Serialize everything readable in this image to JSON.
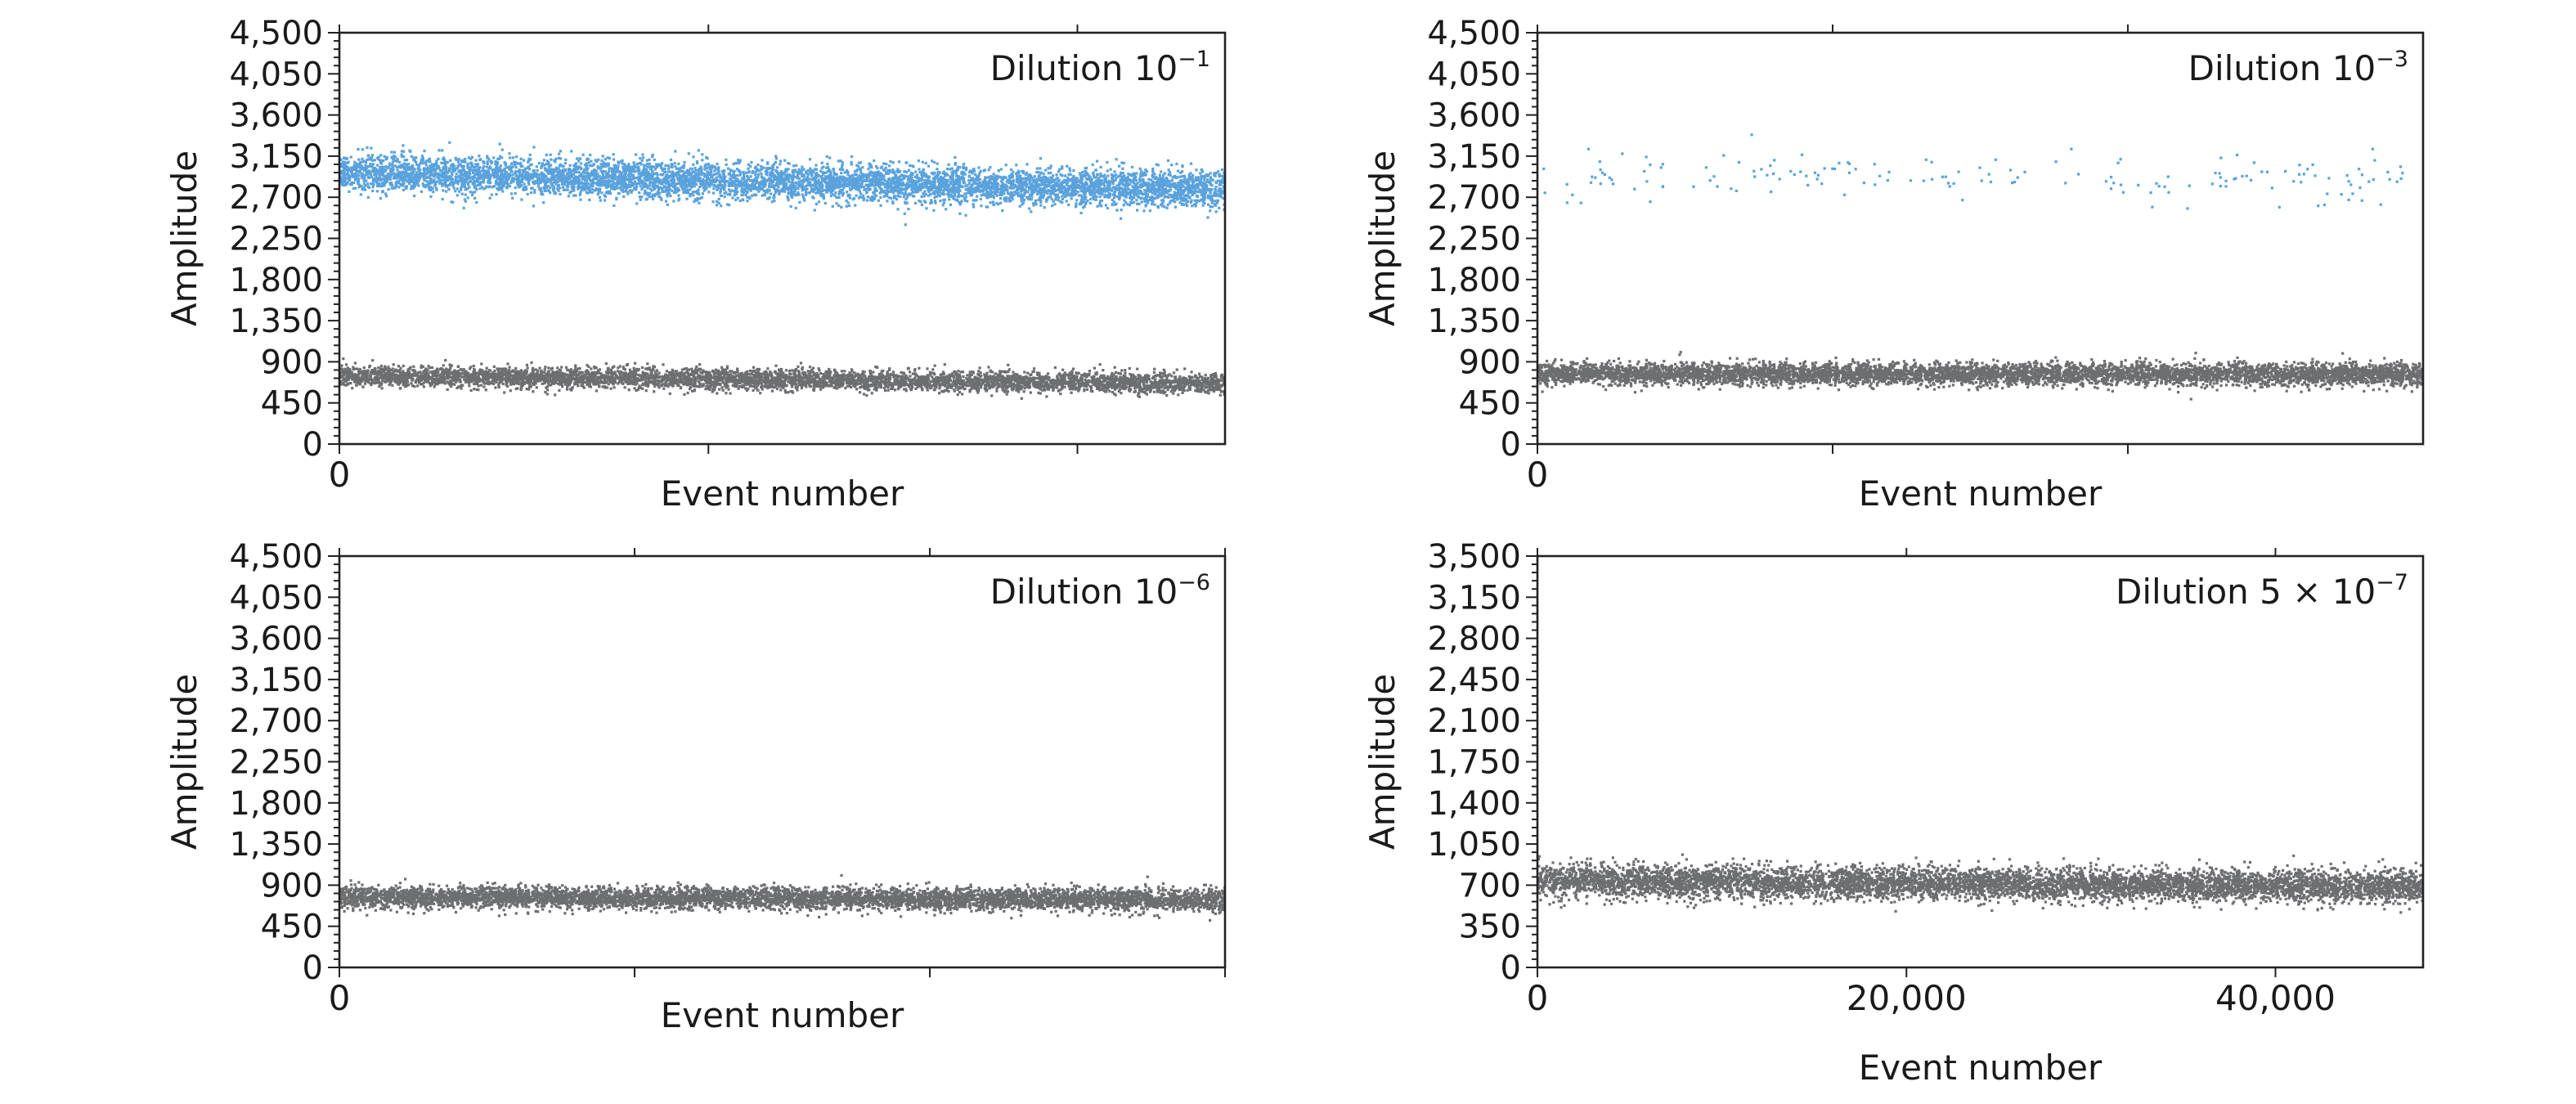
{
  "chart_data": [
    {
      "type": "scatter",
      "annotation": {
        "prefix": "Dilution ",
        "base": "10",
        "exponent": "−1"
      },
      "xlabel": "Event number",
      "ylabel": "Amplitude",
      "yticks": [
        "0",
        "450",
        "900",
        "1,350",
        "1,800",
        "2,250",
        "2,700",
        "3,150",
        "3,600",
        "4,050",
        "4,500"
      ],
      "ylim": [
        0,
        4500
      ],
      "xlim": [
        0,
        48000
      ],
      "xticks": [
        {
          "value": 0,
          "label": "0"
        },
        {
          "value": 20000,
          "label": ""
        },
        {
          "value": 40000,
          "label": ""
        }
      ],
      "series": [
        {
          "color": "#5aa2dc",
          "count": 6500,
          "y_center_start": 2960,
          "y_center_end": 2780,
          "y_spread": 100
        },
        {
          "color": "#6d6e71",
          "count": 5200,
          "y_center_start": 745,
          "y_center_end": 660,
          "y_spread": 55
        }
      ]
    },
    {
      "type": "scatter",
      "annotation": {
        "prefix": "Dilution ",
        "base": "10",
        "exponent": "−3"
      },
      "xlabel": "Event number",
      "ylabel": "Amplitude",
      "yticks": [
        "0",
        "450",
        "900",
        "1,350",
        "1,800",
        "2,250",
        "2,700",
        "3,150",
        "3,600",
        "4,050",
        "4,500"
      ],
      "ylim": [
        0,
        4500
      ],
      "xlim": [
        0,
        48000
      ],
      "xticks": [
        {
          "value": 0,
          "label": "0"
        },
        {
          "value": 16000,
          "label": ""
        },
        {
          "value": 32000,
          "label": ""
        }
      ],
      "series": [
        {
          "color": "#5aa2dc",
          "count": 170,
          "y_center_start": 2930,
          "y_center_end": 2900,
          "y_spread": 130
        },
        {
          "color": "#6d6e71",
          "count": 6000,
          "y_center_start": 770,
          "y_center_end": 760,
          "y_spread": 60
        }
      ]
    },
    {
      "type": "scatter",
      "annotation": {
        "prefix": "Dilution ",
        "base": "10",
        "exponent": "−6"
      },
      "xlabel": "Event number",
      "ylabel": "Amplitude",
      "yticks": [
        "0",
        "450",
        "900",
        "1,350",
        "1,800",
        "2,250",
        "2,700",
        "3,150",
        "3,600",
        "4,050",
        "4,500"
      ],
      "ylim": [
        0,
        4500
      ],
      "xlim": [
        0,
        48000
      ],
      "xticks": [
        {
          "value": 0,
          "label": "0"
        },
        {
          "value": 16000,
          "label": ""
        },
        {
          "value": 32000,
          "label": ""
        },
        {
          "value": 48000,
          "label": ""
        }
      ],
      "series": [
        {
          "color": "#6d6e71",
          "count": 6000,
          "y_center_start": 770,
          "y_center_end": 740,
          "y_spread": 60
        }
      ]
    },
    {
      "type": "scatter",
      "annotation": {
        "prefix": "Dilution 5 × ",
        "base": "10",
        "exponent": "−7"
      },
      "xlabel": "Event number",
      "ylabel": "Amplitude",
      "yticks": [
        "0",
        "350",
        "700",
        "1,050",
        "1,400",
        "1,750",
        "2,100",
        "2,450",
        "2,800",
        "3,150",
        "3,500"
      ],
      "ylim": [
        0,
        3500
      ],
      "xlim": [
        0,
        48000
      ],
      "xticks": [
        {
          "value": 0,
          "label": "0"
        },
        {
          "value": 20000,
          "label": "20,000"
        },
        {
          "value": 40000,
          "label": "40,000"
        }
      ],
      "series": [
        {
          "color": "#6d6e71",
          "count": 6500,
          "y_center_start": 740,
          "y_center_end": 680,
          "y_spread": 70
        }
      ]
    }
  ]
}
